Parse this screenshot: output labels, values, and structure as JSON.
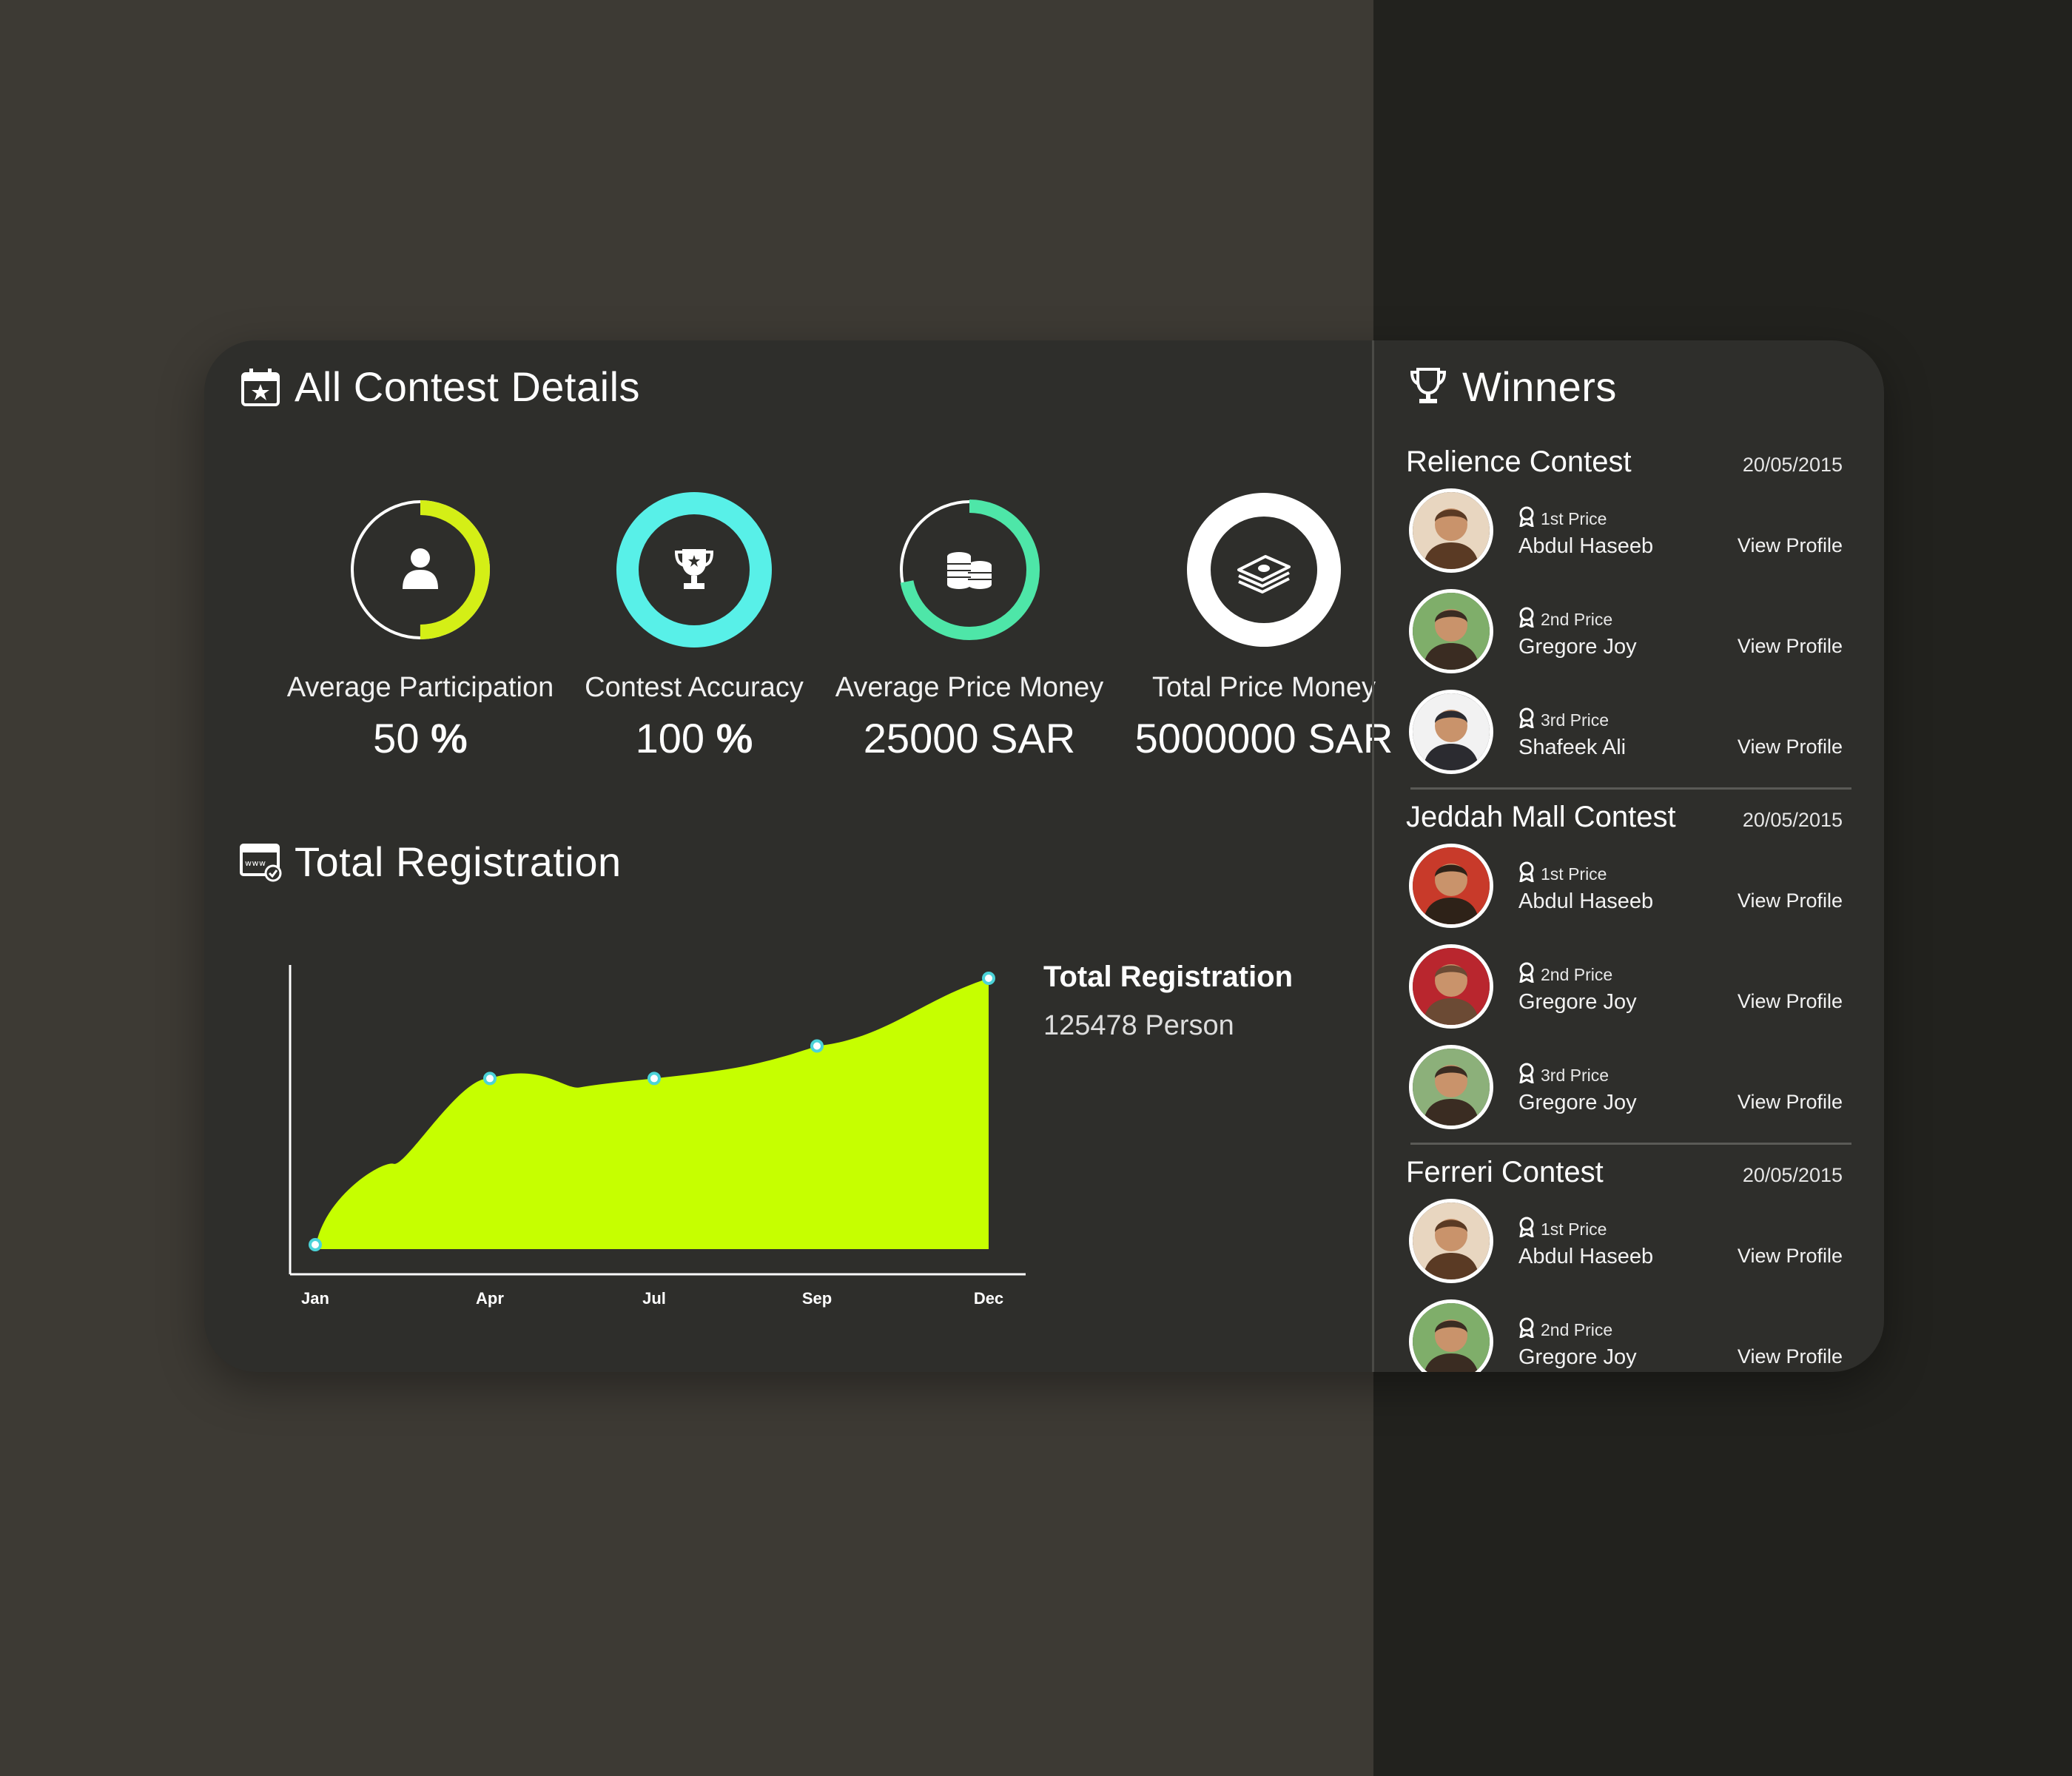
{
  "details": {
    "title": "All Contest Details",
    "stats": [
      {
        "label": "Average Participation",
        "value": "50",
        "unit": " %",
        "ring_fraction": 0.5,
        "color": "#d4ef16",
        "icon": "user-icon"
      },
      {
        "label": "Contest Accuracy",
        "value": "100",
        "unit": " %",
        "ring_fraction": 1.0,
        "color": "#58f0e8",
        "icon": "trophy-icon"
      },
      {
        "label": "Average Price Money",
        "value": "25000 SAR",
        "unit": "",
        "ring_fraction": 0.72,
        "color": "#4ee6a8",
        "icon": "coins-icon"
      },
      {
        "label": "Total Price Money",
        "value": "5000000 SAR",
        "unit": "",
        "ring_fraction": 1.0,
        "color": "#ffffff",
        "icon": "cash-icon"
      }
    ]
  },
  "registration": {
    "title": "Total Registration",
    "legend_title": "Total Registration",
    "legend_value": "125478 Person"
  },
  "chart_data": {
    "type": "area",
    "categories": [
      "Jan",
      "Apr",
      "Jul",
      "Sep",
      "Dec"
    ],
    "values": [
      0,
      63,
      63,
      75,
      100
    ],
    "ylim": [
      0,
      105
    ],
    "grid": false,
    "fill_color": "#c6ff00",
    "marker_color": "#4bd3d8"
  },
  "winners": {
    "title": "Winners",
    "view_label": "View Profile",
    "contests": [
      {
        "name": "Relience Contest",
        "date": "20/05/2015",
        "entries": [
          {
            "place": "1st Price",
            "name": "Abdul Haseeb"
          },
          {
            "place": "2nd Price",
            "name": "Gregore Joy"
          },
          {
            "place": "3rd Price",
            "name": "Shafeek Ali"
          }
        ]
      },
      {
        "name": "Jeddah Mall Contest",
        "date": "20/05/2015",
        "entries": [
          {
            "place": "1st Price",
            "name": "Abdul Haseeb"
          },
          {
            "place": "2nd Price",
            "name": "Gregore Joy"
          },
          {
            "place": "3rd Price",
            "name": "Gregore Joy"
          }
        ]
      },
      {
        "name": "Ferreri Contest",
        "date": "20/05/2015",
        "entries": [
          {
            "place": "1st Price",
            "name": "Abdul Haseeb"
          },
          {
            "place": "2nd Price",
            "name": "Gregore Joy"
          }
        ]
      }
    ]
  }
}
